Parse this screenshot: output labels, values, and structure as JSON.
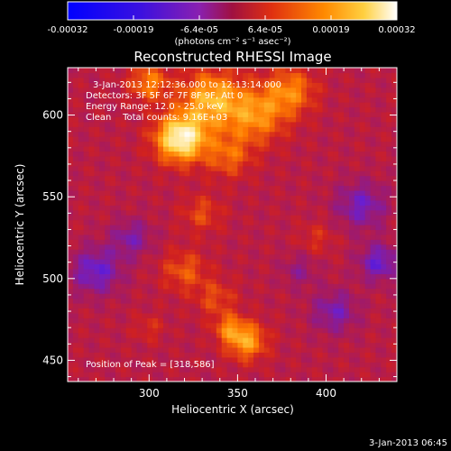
{
  "colorbar": {
    "ticks": [
      "-0.00032",
      "-0.00019",
      "-6.4e-05",
      "6.4e-05",
      "0.00019",
      "0.00032"
    ],
    "unit_label": "(photons cm⁻² s⁻¹ asec⁻²)"
  },
  "image_title": "Reconstructed RHESSI Image",
  "info": {
    "time_range": "3-Jan-2013 12:12:36.000 to 12:13:14.000",
    "detectors": "Detectors: 3F 5F 6F 7F 8F 9F, Att 0",
    "energy": "Energy Range: 12.0 - 25.0 keV",
    "method": "Clean    Total counts: 9.16E+03",
    "peak": "Position of Peak = [318,586]"
  },
  "footer_date": "3-Jan-2013 06:45",
  "chart_data": {
    "type": "heatmap",
    "title": "Reconstructed RHESSI Image",
    "xlabel": "Heliocentric X (arcsec)",
    "ylabel": "Heliocentric Y (arcsec)",
    "xlim": [
      254,
      440
    ],
    "ylim": [
      437,
      629
    ],
    "xticks": [
      "300",
      "350",
      "400"
    ],
    "xtick_values": [
      300,
      350,
      400
    ],
    "yticks": [
      "450",
      "500",
      "550",
      "600"
    ],
    "ytick_values": [
      450,
      500,
      550,
      600
    ],
    "color_range": [
      -0.00032,
      0.00032
    ],
    "peak": [
      318,
      586
    ],
    "colormap": [
      "#0000ff",
      "#6a1fd0",
      "#a01a6a",
      "#d02020",
      "#ff7a00",
      "#ffd040",
      "#ffffff"
    ]
  }
}
